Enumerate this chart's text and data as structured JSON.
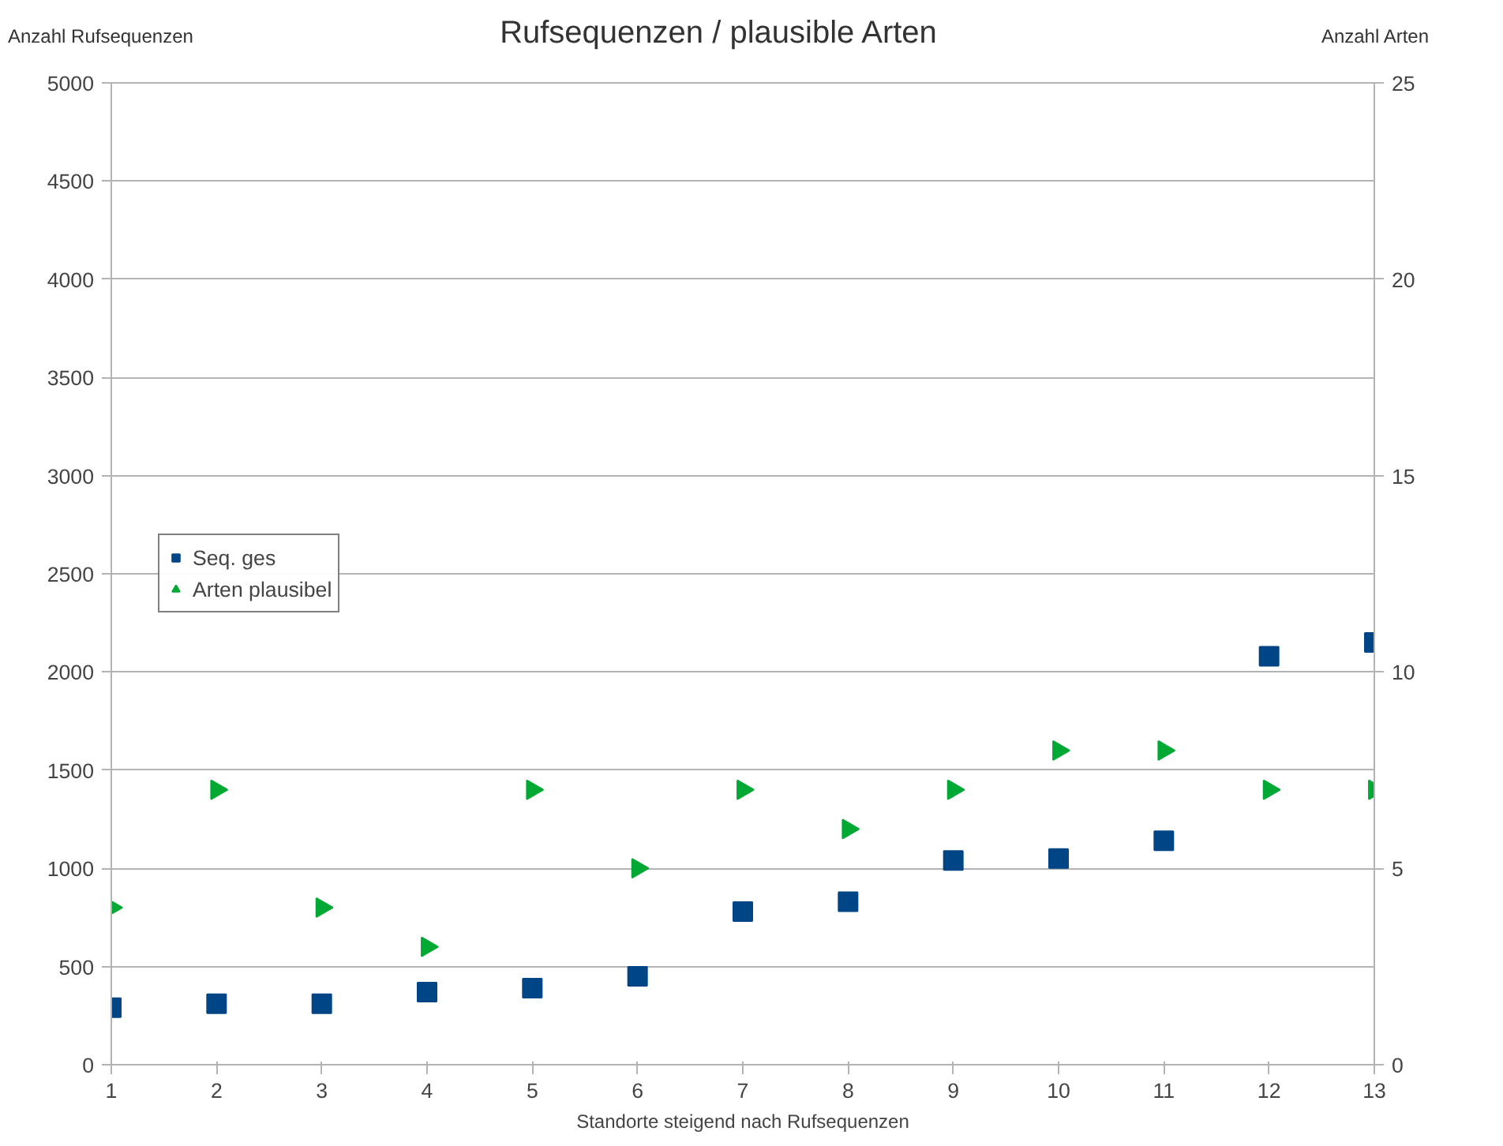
{
  "chart_data": {
    "type": "scatter",
    "title": "Rufsequenzen / plausible Arten",
    "xlabel": "Standorte steigend nach Rufsequenzen",
    "ylabel": "Anzahl Rufsequenzen",
    "y2label": "Anzahl Arten",
    "x": [
      1,
      2,
      3,
      4,
      5,
      6,
      7,
      8,
      9,
      10,
      11,
      12,
      13
    ],
    "series": [
      {
        "name": "Seq. ges",
        "color": "#004586",
        "marker": "square",
        "values": [
          290,
          310,
          310,
          370,
          390,
          450,
          780,
          830,
          1040,
          1050,
          1140,
          2080,
          2150
        ]
      },
      {
        "name": "Arten plausibel",
        "color": "#00a933",
        "marker": "triangle",
        "axis": "y2",
        "values": [
          4,
          7,
          4,
          3,
          7,
          5,
          7,
          6,
          7,
          8,
          8,
          7,
          7
        ]
      }
    ],
    "xlim": [
      1,
      13
    ],
    "xticks": [
      1,
      2,
      3,
      4,
      5,
      6,
      7,
      8,
      9,
      10,
      11,
      12,
      13
    ],
    "ylim": [
      0,
      5000
    ],
    "yticks": [
      0,
      500,
      1000,
      1500,
      2000,
      2500,
      3000,
      3500,
      4000,
      4500,
      5000
    ],
    "y2lim": [
      0,
      25
    ],
    "y2ticks": [
      0,
      5,
      10,
      15,
      20,
      25
    ],
    "grid": "y",
    "legend": "left"
  }
}
